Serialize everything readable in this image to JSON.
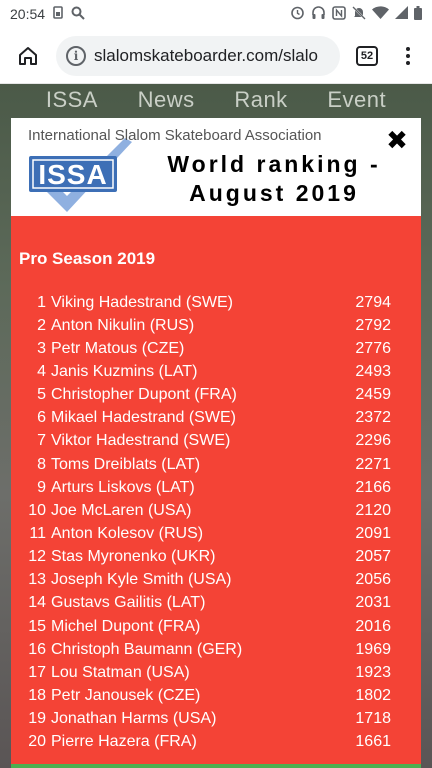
{
  "status": {
    "time": "20:54",
    "icons_left": [
      "sim-icon",
      "search-icon"
    ],
    "icons_right": [
      "alarm-icon",
      "headphones-icon",
      "nfc-icon",
      "mute-icon",
      "wifi-icon",
      "signal-icon",
      "battery-icon"
    ]
  },
  "browser": {
    "url": "slalomskateboarder.com/slalo",
    "tab_count": "52"
  },
  "site_nav": [
    "ISSA",
    "News",
    "Rank",
    "Event"
  ],
  "modal": {
    "org_name": "International Slalom Skateboard Association",
    "logo_text": "ISSA",
    "title_line1": "World ranking -",
    "title_line2": "August 2019",
    "close_symbol": "✖",
    "season_heading": "Pro Season 2019",
    "rankings": [
      {
        "rank": "1",
        "name": "Viking Hadestrand (SWE)",
        "points": "2794"
      },
      {
        "rank": "2",
        "name": "Anton Nikulin (RUS)",
        "points": "2792"
      },
      {
        "rank": "3",
        "name": "Petr Matous (CZE)",
        "points": "2776"
      },
      {
        "rank": "4",
        "name": "Janis Kuzmins (LAT)",
        "points": "2493"
      },
      {
        "rank": "5",
        "name": "Christopher Dupont (FRA)",
        "points": "2459"
      },
      {
        "rank": "6",
        "name": "Mikael Hadestrand (SWE)",
        "points": "2372"
      },
      {
        "rank": "7",
        "name": "Viktor Hadestrand (SWE)",
        "points": "2296"
      },
      {
        "rank": "8",
        "name": "Toms Dreiblats (LAT)",
        "points": "2271"
      },
      {
        "rank": "9",
        "name": "Arturs Liskovs (LAT)",
        "points": "2166"
      },
      {
        "rank": "10",
        "name": "Joe McLaren (USA)",
        "points": "2120"
      },
      {
        "rank": "11",
        "name": "Anton Kolesov (RUS)",
        "points": "2091"
      },
      {
        "rank": "12",
        "name": "Stas Myronenko (UKR)",
        "points": "2057"
      },
      {
        "rank": "13",
        "name": "Joseph Kyle Smith (USA)",
        "points": "2056"
      },
      {
        "rank": "14",
        "name": "Gustavs Gailitis (LAT)",
        "points": "2031"
      },
      {
        "rank": "15",
        "name": "Michel Dupont (FRA)",
        "points": "2016"
      },
      {
        "rank": "16",
        "name": "Christoph Baumann (GER)",
        "points": "1969"
      },
      {
        "rank": "17",
        "name": "Lou Statman (USA)",
        "points": "1923"
      },
      {
        "rank": "18",
        "name": "Petr Janousek (CZE)",
        "points": "1802"
      },
      {
        "rank": "19",
        "name": "Jonathan Harms (USA)",
        "points": "1718"
      },
      {
        "rank": "20",
        "name": "Pierre Hazera (FRA)",
        "points": "1661"
      }
    ]
  },
  "colors": {
    "modal_bg": "#f44336",
    "logo_blue": "#3d6fb6",
    "logo_check": "#8fb0e0"
  }
}
